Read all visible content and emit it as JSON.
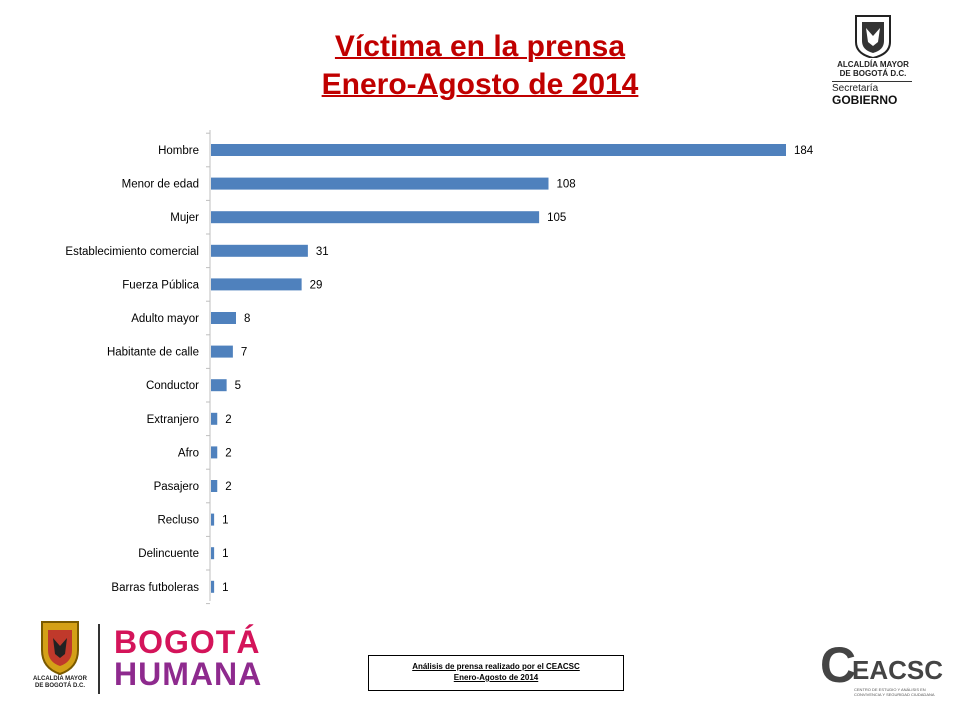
{
  "header": {
    "title_line1": "Víctima en la prensa",
    "title_line2": "Enero-Agosto de 2014"
  },
  "logos": {
    "gov_line1": "ALCALDÍA MAYOR",
    "gov_line2": "DE BOGOTÁ D.C.",
    "gov_secretaria": "Secretaría",
    "gov_gobierno": "GOBIERNO",
    "alcaldia_line1": "ALCALDÍA MAYOR",
    "alcaldia_line2": "DE BOGOTÁ D.C.",
    "bh_line1": "BOGOTÁ",
    "bh_line2": "HUMANA",
    "ceacsc_c": "C",
    "ceacsc_rest": "EACSC",
    "ceacsc_sub": "CENTRO DE ESTUDIO Y ANÁLISIS EN CONVIVENCIA Y SEGURIDAD CIUDADANA"
  },
  "source": {
    "line1": "Análisis de prensa realizado por el CEACSC",
    "line2": "Enero-Agosto de 2014"
  },
  "colors": {
    "bar": "#4f81bd",
    "title": "#c00000"
  },
  "chart_data": {
    "type": "bar",
    "orientation": "horizontal",
    "categories": [
      "Hombre",
      "Menor de edad",
      "Mujer",
      "Establecimiento comercial",
      "Fuerza Pública",
      "Adulto mayor",
      "Habitante de calle",
      "Conductor",
      "Extranjero",
      "Afro",
      "Pasajero",
      "Recluso",
      "Delincuente",
      "Barras futboleras"
    ],
    "values": [
      184,
      108,
      105,
      31,
      29,
      8,
      7,
      5,
      2,
      2,
      2,
      1,
      1,
      1
    ],
    "xlim": [
      0,
      184
    ],
    "grid": false,
    "legend": "none"
  }
}
